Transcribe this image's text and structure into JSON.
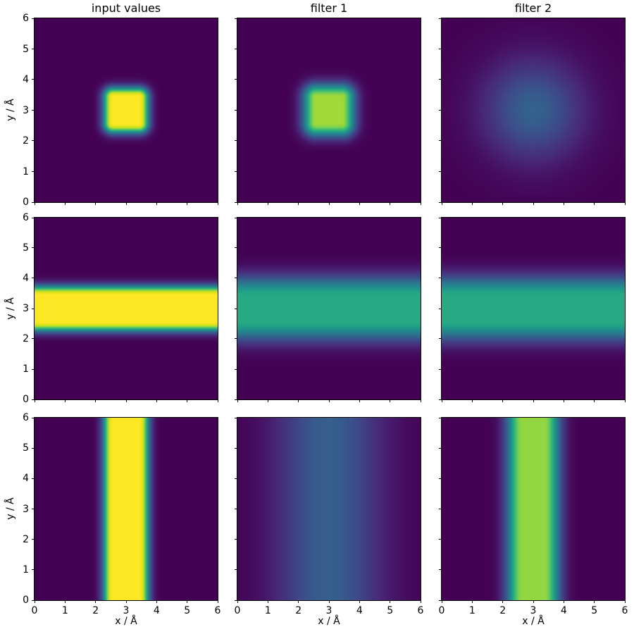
{
  "figure": {
    "background": "#ffffff",
    "text_color": "#000000"
  },
  "chart_data": {
    "type": "heatmap",
    "colormap": "viridis",
    "colormap_anchors": [
      "#440154",
      "#482878",
      "#3e4a89",
      "#31688e",
      "#26828e",
      "#1f9e89",
      "#35b779",
      "#6ece58",
      "#b5de2b",
      "#dce319",
      "#fde725"
    ],
    "background_color": "#440154",
    "peak_color": "#fde725",
    "col_titles": [
      "input values",
      "filter 1",
      "filter 2"
    ],
    "axes": {
      "xlabel": "x / Å",
      "ylabel": "y / Å",
      "x_range": [
        0,
        6
      ],
      "y_range": [
        0,
        6
      ],
      "x_ticks": [
        0,
        1,
        2,
        3,
        4,
        5,
        6
      ],
      "y_ticks": [
        0,
        1,
        2,
        3,
        4,
        5,
        6
      ],
      "grid": false,
      "legend": false
    },
    "grid_layout": {
      "rows": 3,
      "cols": 3
    },
    "panels": [
      {
        "row": 0,
        "col": 0,
        "column_title": "input values",
        "feature": "square-blob-sharp",
        "peak": 1.0,
        "x": {
          "type": "flattop",
          "center": 3,
          "halfwidth": 0.43,
          "sigma": 0.22
        },
        "y": {
          "type": "flattop",
          "center": 3,
          "halfwidth": 0.43,
          "sigma": 0.22
        }
      },
      {
        "row": 0,
        "col": 1,
        "column_title": "filter 1",
        "feature": "square-blob-smoothed",
        "peak": 0.77,
        "x": {
          "type": "flattop",
          "center": 3,
          "halfwidth": 0.43,
          "sigma": 0.3
        },
        "y": {
          "type": "flattop",
          "center": 3,
          "halfwidth": 0.43,
          "sigma": 0.3
        }
      },
      {
        "row": 0,
        "col": 2,
        "column_title": "filter 2",
        "feature": "broad-radial-blob",
        "peak": 0.28,
        "x": {
          "type": "gaussian",
          "center": 3,
          "sigma": 1.15
        },
        "y": {
          "type": "gaussian",
          "center": 3,
          "sigma": 1.15
        }
      },
      {
        "row": 1,
        "col": 0,
        "column_title": "input values",
        "feature": "horizontal-band-sharp",
        "peak": 1.0,
        "x": {
          "type": "uniform"
        },
        "y": {
          "type": "flattop",
          "center": 3,
          "halfwidth": 0.43,
          "sigma": 0.22
        }
      },
      {
        "row": 1,
        "col": 1,
        "column_title": "filter 1",
        "feature": "horizontal-band-smoothed",
        "peak": 0.54,
        "x": {
          "type": "uniform"
        },
        "y": {
          "type": "flattop",
          "center": 3,
          "halfwidth": 0.42,
          "sigma": 0.45
        }
      },
      {
        "row": 1,
        "col": 2,
        "column_title": "filter 2",
        "feature": "horizontal-band-smoothed",
        "peak": 0.54,
        "x": {
          "type": "uniform"
        },
        "y": {
          "type": "flattop",
          "center": 3,
          "halfwidth": 0.42,
          "sigma": 0.45
        }
      },
      {
        "row": 2,
        "col": 0,
        "column_title": "input values",
        "feature": "vertical-band-sharp",
        "peak": 1.0,
        "x": {
          "type": "flattop",
          "center": 3,
          "halfwidth": 0.43,
          "sigma": 0.22
        },
        "y": {
          "type": "uniform"
        }
      },
      {
        "row": 2,
        "col": 1,
        "column_title": "filter 1",
        "feature": "vertical-band-broad",
        "peak": 0.27,
        "x": {
          "type": "gaussian",
          "center": 3,
          "sigma": 1.2
        },
        "y": {
          "type": "uniform"
        }
      },
      {
        "row": 2,
        "col": 2,
        "column_title": "filter 2",
        "feature": "vertical-band-smoothed",
        "peak": 0.75,
        "x": {
          "type": "flattop",
          "center": 3,
          "halfwidth": 0.37,
          "sigma": 0.35
        },
        "y": {
          "type": "uniform"
        }
      }
    ]
  }
}
